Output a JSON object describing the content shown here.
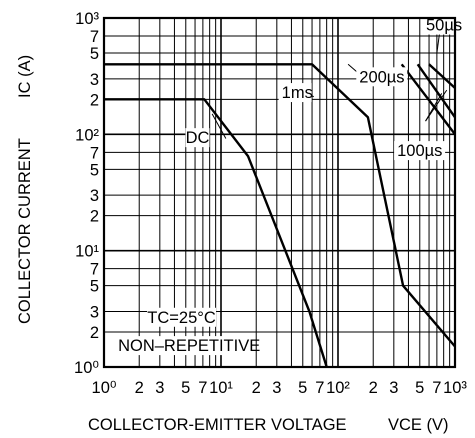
{
  "chart_data": {
    "type": "line",
    "title": "",
    "xlabel": "COLLECTOR-EMITTER VOLTAGE",
    "xlabel_symbol": "VCE (V)",
    "ylabel": "COLLECTOR CURRENT",
    "ylabel_symbol": "IC (A)",
    "x_scale": "log",
    "y_scale": "log",
    "xlim": [
      1,
      1000
    ],
    "ylim": [
      1,
      1000
    ],
    "grid": true,
    "x_tick_labels": [
      "10⁰",
      "2",
      "3",
      "5",
      "7",
      "10¹",
      "2",
      "3",
      "5",
      "7",
      "10²",
      "2",
      "3",
      "5",
      "7",
      "10³"
    ],
    "y_tick_labels": [
      "10⁰",
      "2",
      "3",
      "5",
      "7",
      "10¹",
      "2",
      "3",
      "5",
      "7",
      "10²",
      "2",
      "3",
      "5",
      "7",
      "10³"
    ],
    "series": [
      {
        "name": "DC",
        "points": [
          [
            1,
            200
          ],
          [
            7.2,
            200
          ],
          [
            17,
            65
          ],
          [
            57,
            3
          ],
          [
            80,
            1
          ]
        ]
      },
      {
        "name": "1ms",
        "points": [
          [
            1,
            400
          ],
          [
            60,
            400
          ],
          [
            180,
            140
          ],
          [
            360,
            5
          ],
          [
            1000,
            1.5
          ]
        ]
      },
      {
        "name": "200µs",
        "points": [
          [
            350,
            400
          ],
          [
            1000,
            100
          ]
        ]
      },
      {
        "name": "100µs",
        "points": [
          [
            480,
            400
          ],
          [
            1000,
            140
          ]
        ]
      },
      {
        "name": "50µs",
        "points": [
          [
            600,
            400
          ],
          [
            1000,
            250
          ]
        ]
      }
    ],
    "annotations": {
      "dc": "DC",
      "one_ms": "1ms",
      "two_hundred_us": "200µs",
      "hundred_us": "100µs",
      "fifty_us": "50µs",
      "condition_1": "TC=25°C",
      "condition_2": "NON–REPETITIVE"
    }
  }
}
